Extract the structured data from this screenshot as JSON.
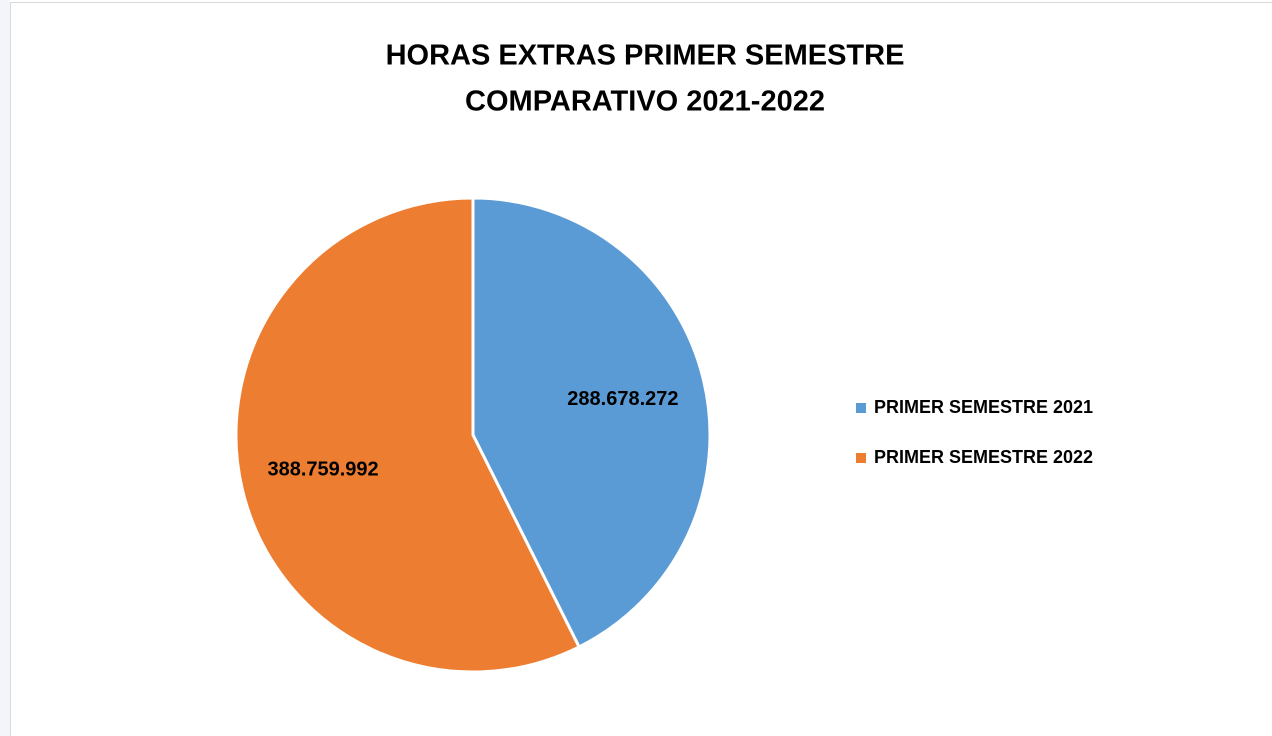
{
  "chart_data": {
    "type": "pie",
    "title": [
      "HORAS EXTRAS PRIMER SEMESTRE",
      "COMPARATIVO 2021-2022"
    ],
    "categories": [
      "PRIMER SEMESTRE 2021",
      "PRIMER SEMESTRE 2022"
    ],
    "values": [
      288678272,
      388759992
    ],
    "value_labels": [
      "288.678.272",
      "388.759.992"
    ],
    "colors": [
      "#5b9bd5",
      "#ed7d31"
    ],
    "legend": "right"
  }
}
